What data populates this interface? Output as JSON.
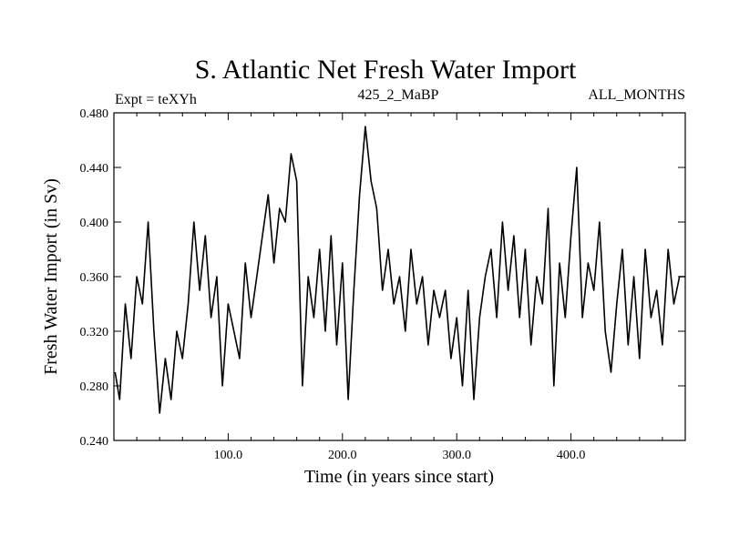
{
  "chart_data": {
    "type": "line",
    "title": "S. Atlantic Net Fresh Water Import",
    "subtitle_left": "Expt = teXYh",
    "subtitle_center": "425_2_MaBP",
    "subtitle_right": "ALL_MONTHS",
    "xlabel": "Time (in years since start)",
    "ylabel": "Fresh Water Import (in Sv)",
    "xlim": [
      0,
      500
    ],
    "ylim": [
      0.24,
      0.48
    ],
    "x_ticks": [
      100,
      200,
      300,
      400
    ],
    "x_tick_labels": [
      "100.0",
      "200.0",
      "300.0",
      "400.0"
    ],
    "y_ticks": [
      0.24,
      0.28,
      0.32,
      0.36,
      0.4,
      0.44,
      0.48
    ],
    "y_tick_labels": [
      "0.240",
      "0.280",
      "0.320",
      "0.360",
      "0.400",
      "0.440",
      "0.480"
    ],
    "grid": false,
    "line_color": "#000000",
    "series": [
      {
        "x": [
          1,
          5,
          10,
          15,
          20,
          25,
          30,
          35,
          40,
          45,
          50,
          55,
          60,
          65,
          70,
          75,
          80,
          85,
          90,
          95,
          100,
          105,
          110,
          115,
          120,
          125,
          130,
          135,
          140,
          145,
          150,
          155,
          160,
          165,
          170,
          175,
          180,
          185,
          190,
          195,
          200,
          205,
          210,
          215,
          220,
          225,
          230,
          235,
          240,
          245,
          250,
          255,
          260,
          265,
          270,
          275,
          280,
          285,
          290,
          295,
          300,
          305,
          310,
          315,
          320,
          325,
          330,
          335,
          340,
          345,
          350,
          355,
          360,
          365,
          370,
          375,
          380,
          385,
          390,
          395,
          400,
          405,
          410,
          415,
          420,
          425,
          430,
          435,
          440,
          445,
          450,
          455,
          460,
          465,
          470,
          475,
          480,
          485,
          490,
          495,
          500
        ],
        "values": [
          0.29,
          0.27,
          0.34,
          0.3,
          0.36,
          0.34,
          0.4,
          0.32,
          0.26,
          0.3,
          0.27,
          0.32,
          0.3,
          0.34,
          0.4,
          0.35,
          0.39,
          0.33,
          0.36,
          0.28,
          0.34,
          0.32,
          0.3,
          0.37,
          0.33,
          0.36,
          0.39,
          0.42,
          0.37,
          0.41,
          0.4,
          0.45,
          0.43,
          0.28,
          0.36,
          0.33,
          0.38,
          0.32,
          0.39,
          0.31,
          0.37,
          0.27,
          0.35,
          0.42,
          0.47,
          0.43,
          0.41,
          0.35,
          0.38,
          0.34,
          0.36,
          0.32,
          0.38,
          0.34,
          0.36,
          0.31,
          0.35,
          0.33,
          0.35,
          0.3,
          0.33,
          0.28,
          0.35,
          0.27,
          0.33,
          0.36,
          0.38,
          0.33,
          0.4,
          0.35,
          0.39,
          0.33,
          0.38,
          0.31,
          0.36,
          0.34,
          0.41,
          0.28,
          0.37,
          0.33,
          0.39,
          0.44,
          0.33,
          0.37,
          0.35,
          0.4,
          0.32,
          0.29,
          0.34,
          0.38,
          0.31,
          0.36,
          0.3,
          0.38,
          0.33,
          0.35,
          0.31,
          0.38,
          0.34,
          0.36,
          0.36
        ]
      }
    ]
  }
}
